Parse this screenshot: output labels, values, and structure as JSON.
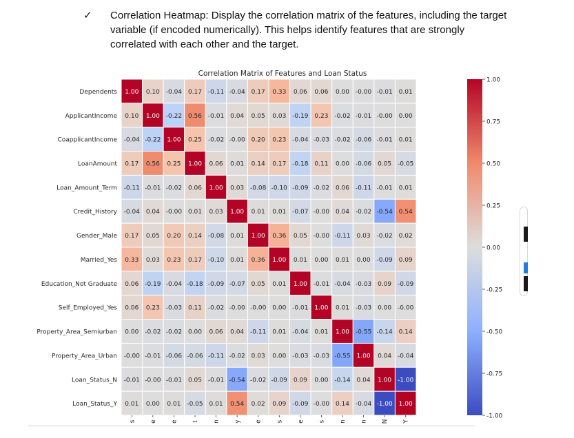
{
  "document": {
    "bullet": "✓",
    "line1": "Correlation Heatmap: Display the correlation matrix of the features, including the target",
    "line2": "variable (if encoded numerically). This helps identify features that are strongly",
    "line3": "correlated with each other and the target."
  },
  "chart_data": {
    "type": "heatmap",
    "title": "Correlation Matrix of Features and Loan Status",
    "rows": [
      "Dependents",
      "ApplicantIncome",
      "CoapplicantIncome",
      "LoanAmount",
      "Loan_Amount_Term",
      "Credit_History",
      "Gender_Male",
      "Married_Yes",
      "Education_Not Graduate",
      "Self_Employed_Yes",
      "Property_Area_Semiurban",
      "Property_Area_Urban",
      "Loan_Status_N",
      "Loan_Status_Y"
    ],
    "values": [
      [
        1.0,
        0.1,
        -0.04,
        0.17,
        -0.11,
        -0.04,
        0.17,
        0.33,
        0.06,
        0.06,
        0.0,
        -0.0,
        -0.01,
        0.01
      ],
      [
        0.1,
        1.0,
        -0.22,
        0.56,
        -0.01,
        0.04,
        0.05,
        0.03,
        -0.19,
        0.23,
        -0.02,
        -0.01,
        -0.0,
        0.0
      ],
      [
        -0.04,
        -0.22,
        1.0,
        0.25,
        -0.02,
        -0.0,
        0.2,
        0.23,
        -0.04,
        -0.03,
        -0.02,
        -0.06,
        -0.01,
        0.01
      ],
      [
        0.17,
        0.56,
        0.25,
        1.0,
        0.06,
        0.01,
        0.14,
        0.17,
        -0.18,
        0.11,
        0.0,
        -0.06,
        0.05,
        -0.05
      ],
      [
        -0.11,
        -0.01,
        -0.02,
        0.06,
        1.0,
        0.03,
        -0.08,
        -0.1,
        -0.09,
        -0.02,
        0.06,
        -0.11,
        -0.01,
        0.01
      ],
      [
        -0.04,
        0.04,
        -0.0,
        0.01,
        0.03,
        1.0,
        0.01,
        0.01,
        -0.07,
        -0.0,
        0.04,
        -0.02,
        -0.54,
        0.54
      ],
      [
        0.17,
        0.05,
        0.2,
        0.14,
        -0.08,
        0.01,
        1.0,
        0.36,
        0.05,
        -0.0,
        -0.11,
        0.03,
        -0.02,
        0.02
      ],
      [
        0.33,
        0.03,
        0.23,
        0.17,
        -0.1,
        0.01,
        0.36,
        1.0,
        0.01,
        0.0,
        0.01,
        0.0,
        -0.09,
        0.09
      ],
      [
        0.06,
        -0.19,
        -0.04,
        -0.18,
        -0.09,
        -0.07,
        0.05,
        0.01,
        1.0,
        -0.01,
        -0.04,
        -0.03,
        0.09,
        -0.09
      ],
      [
        0.06,
        0.23,
        -0.03,
        0.11,
        -0.02,
        -0.0,
        -0.0,
        0.0,
        -0.01,
        1.0,
        0.01,
        -0.03,
        0.0,
        -0.0
      ],
      [
        0.0,
        -0.02,
        -0.02,
        0.0,
        0.06,
        0.04,
        -0.11,
        0.01,
        -0.04,
        0.01,
        1.0,
        -0.55,
        -0.14,
        0.14
      ],
      [
        -0.0,
        -0.01,
        -0.06,
        -0.06,
        -0.11,
        -0.02,
        0.03,
        0.0,
        -0.03,
        -0.03,
        -0.55,
        1.0,
        0.04,
        -0.04
      ],
      [
        -0.01,
        -0.0,
        -0.01,
        0.05,
        -0.01,
        -0.54,
        -0.02,
        -0.09,
        0.09,
        0.0,
        -0.14,
        0.04,
        1.0,
        -1.0
      ],
      [
        0.01,
        0.0,
        0.01,
        -0.05,
        0.01,
        0.54,
        0.02,
        0.09,
        -0.09,
        -0.0,
        0.14,
        -0.04,
        -1.0,
        1.0
      ]
    ],
    "x_tick_glyphs": [
      "s",
      "e",
      "e",
      "t",
      "n",
      "y",
      "e",
      "s",
      "e",
      "s",
      "n",
      "n",
      "N",
      "Y"
    ],
    "colorbar": {
      "range": [
        -1.0,
        1.0
      ],
      "ticks": [
        "1.00",
        "0.75",
        "0.50",
        "0.25",
        "0.00",
        "-0.25",
        "-0.50",
        "-0.75",
        "-1.00"
      ],
      "colormap": "coolwarm",
      "low_color": "#3b4cc0",
      "mid_color": "#dddddd",
      "high_color": "#b40426"
    }
  }
}
